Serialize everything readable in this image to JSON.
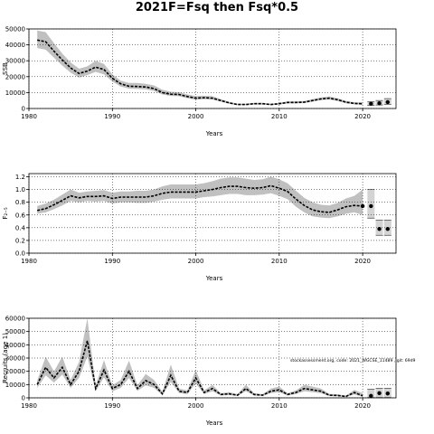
{
  "title": "2021F=Fsq then Fsq*0.5",
  "watermark": "stockassessment.org, code: 2021_WGCSE_11489 , git: 69d9",
  "colors": {
    "band": "#c0c0c0",
    "line": "#000000",
    "projection_band": "#d3d3d3",
    "grid": "#000000"
  },
  "chart_data": [
    {
      "type": "line",
      "title": "",
      "xlabel": "Years",
      "ylabel": "SSB",
      "xlim": [
        1980,
        2024
      ],
      "ylim": [
        0,
        50000
      ],
      "xticks": [
        1980,
        1990,
        2000,
        2010,
        2020
      ],
      "yticks": [
        0,
        10000,
        20000,
        30000,
        40000,
        50000
      ],
      "grid": true,
      "x": [
        1981,
        1982,
        1983,
        1984,
        1985,
        1986,
        1987,
        1988,
        1989,
        1990,
        1991,
        1992,
        1993,
        1994,
        1995,
        1996,
        1997,
        1998,
        1999,
        2000,
        2001,
        2002,
        2003,
        2004,
        2005,
        2006,
        2007,
        2008,
        2009,
        2010,
        2011,
        2012,
        2013,
        2014,
        2015,
        2016,
        2017,
        2018,
        2019,
        2020
      ],
      "estimate": [
        43000,
        42000,
        36000,
        30500,
        25500,
        22000,
        23500,
        26000,
        24500,
        19000,
        15500,
        14000,
        13800,
        13500,
        12500,
        10000,
        9000,
        8800,
        7500,
        6500,
        6800,
        6500,
        5000,
        3500,
        2500,
        2500,
        3000,
        3000,
        2500,
        3000,
        3800,
        3800,
        4000,
        5000,
        6000,
        6500,
        5500,
        4000,
        3200,
        3000
      ],
      "lower": [
        38000,
        37000,
        32000,
        27000,
        22500,
        19500,
        21000,
        23000,
        21500,
        17000,
        13800,
        12500,
        12300,
        12000,
        11000,
        8800,
        7900,
        7700,
        6500,
        5500,
        5800,
        5600,
        4300,
        3000,
        2100,
        2100,
        2500,
        2500,
        2100,
        2500,
        3200,
        3200,
        3400,
        4300,
        5200,
        5600,
        4700,
        3300,
        2600,
        2300
      ],
      "upper": [
        49000,
        48000,
        41000,
        34500,
        29000,
        25000,
        26500,
        30000,
        28000,
        21500,
        17500,
        16000,
        16000,
        15500,
        14500,
        11800,
        10500,
        10200,
        8800,
        7800,
        8000,
        7700,
        5900,
        4200,
        3000,
        3000,
        3600,
        3600,
        3000,
        3600,
        4500,
        4500,
        4700,
        5900,
        7000,
        7600,
        6500,
        4800,
        3900,
        3800
      ],
      "projection": {
        "x": [
          2021,
          2022,
          2023
        ],
        "values": [
          3000,
          3300,
          4000
        ],
        "lower": [
          2000,
          2200,
          2600
        ],
        "upper": [
          4200,
          5000,
          6200
        ]
      }
    },
    {
      "type": "line",
      "title": "",
      "xlabel": "Years",
      "ylabel": "F₂₋₅",
      "xlim": [
        1980,
        2024
      ],
      "ylim": [
        0,
        1.25
      ],
      "xticks": [
        1980,
        1990,
        2000,
        2010,
        2020
      ],
      "yticks": [
        0.0,
        0.2,
        0.4,
        0.6,
        0.8,
        1.0,
        1.2
      ],
      "grid": true,
      "x": [
        1981,
        1982,
        1983,
        1984,
        1985,
        1986,
        1987,
        1988,
        1989,
        1990,
        1991,
        1992,
        1993,
        1994,
        1995,
        1996,
        1997,
        1998,
        1999,
        2000,
        2001,
        2002,
        2003,
        2004,
        2005,
        2006,
        2007,
        2008,
        2009,
        2010,
        2011,
        2012,
        2013,
        2014,
        2015,
        2016,
        2017,
        2018,
        2019,
        2020
      ],
      "estimate": [
        0.67,
        0.7,
        0.76,
        0.83,
        0.9,
        0.87,
        0.89,
        0.89,
        0.9,
        0.86,
        0.88,
        0.88,
        0.88,
        0.88,
        0.9,
        0.94,
        0.96,
        0.96,
        0.96,
        0.96,
        0.98,
        1.0,
        1.03,
        1.05,
        1.05,
        1.03,
        1.02,
        1.03,
        1.06,
        1.02,
        0.97,
        0.85,
        0.75,
        0.68,
        0.65,
        0.64,
        0.68,
        0.73,
        0.75,
        0.74
      ],
      "lower": [
        0.62,
        0.64,
        0.69,
        0.75,
        0.82,
        0.8,
        0.82,
        0.81,
        0.82,
        0.78,
        0.8,
        0.8,
        0.79,
        0.79,
        0.81,
        0.84,
        0.86,
        0.86,
        0.86,
        0.86,
        0.88,
        0.89,
        0.91,
        0.93,
        0.93,
        0.91,
        0.91,
        0.92,
        0.94,
        0.9,
        0.85,
        0.73,
        0.64,
        0.58,
        0.56,
        0.55,
        0.58,
        0.62,
        0.64,
        0.6
      ],
      "upper": [
        0.74,
        0.78,
        0.84,
        0.92,
        1.0,
        0.95,
        0.97,
        0.98,
        0.99,
        0.95,
        0.97,
        0.97,
        0.98,
        0.98,
        1.0,
        1.05,
        1.08,
        1.08,
        1.08,
        1.08,
        1.1,
        1.13,
        1.17,
        1.19,
        1.19,
        1.17,
        1.15,
        1.16,
        1.2,
        1.16,
        1.1,
        0.98,
        0.87,
        0.8,
        0.76,
        0.75,
        0.79,
        0.86,
        0.9,
        1.0
      ],
      "projection": {
        "x": [
          2021,
          2022,
          2023
        ],
        "values": [
          0.74,
          0.38,
          0.38
        ],
        "lower": [
          0.55,
          0.28,
          0.28
        ],
        "upper": [
          1.0,
          0.52,
          0.52
        ]
      }
    },
    {
      "type": "line",
      "title": "",
      "xlabel": "Years",
      "ylabel": "Recruits (age 1)",
      "xlim": [
        1980,
        2024
      ],
      "ylim": [
        0,
        60000
      ],
      "xticks": [
        1980,
        1990,
        2000,
        2010,
        2020
      ],
      "yticks": [
        0,
        10000,
        20000,
        30000,
        40000,
        50000,
        60000
      ],
      "grid": true,
      "x": [
        1981,
        1982,
        1983,
        1984,
        1985,
        1986,
        1987,
        1988,
        1989,
        1990,
        1991,
        1992,
        1993,
        1994,
        1995,
        1996,
        1997,
        1998,
        1999,
        2000,
        2001,
        2002,
        2003,
        2004,
        2005,
        2006,
        2007,
        2008,
        2009,
        2010,
        2011,
        2012,
        2013,
        2014,
        2015,
        2016,
        2017,
        2018,
        2019,
        2020
      ],
      "estimate": [
        10000,
        23000,
        15000,
        23000,
        10000,
        20000,
        43000,
        7000,
        21000,
        7000,
        10000,
        20000,
        7000,
        13000,
        10000,
        3000,
        17000,
        5000,
        4000,
        15000,
        4000,
        7000,
        2500,
        3000,
        2000,
        7000,
        2500,
        2000,
        5000,
        6000,
        2500,
        4000,
        7000,
        6000,
        5000,
        2000,
        1800,
        1000,
        4000,
        1500
      ],
      "lower": [
        7500,
        17000,
        11500,
        17500,
        7500,
        15000,
        31000,
        5000,
        15500,
        5000,
        7500,
        15000,
        5200,
        9500,
        7500,
        2000,
        12000,
        3600,
        2800,
        11000,
        2800,
        5000,
        1700,
        2100,
        1400,
        5000,
        1700,
        1400,
        3600,
        4300,
        1700,
        2800,
        5000,
        4200,
        3500,
        1300,
        1200,
        600,
        2600,
        700
      ],
      "upper": [
        13000,
        31000,
        20000,
        31000,
        13500,
        27000,
        60000,
        9500,
        28500,
        9500,
        13500,
        28000,
        9500,
        18000,
        13500,
        4500,
        25000,
        7000,
        5600,
        21000,
        5600,
        9800,
        3500,
        4200,
        2800,
        9800,
        3500,
        2800,
        7000,
        8500,
        3500,
        5600,
        9800,
        8500,
        7000,
        3000,
        2700,
        1600,
        6000,
        3500
      ],
      "projection": {
        "x": [
          2021,
          2022,
          2023
        ],
        "values": [
          1500,
          3500,
          3300
        ],
        "lower": [
          200,
          200,
          200
        ],
        "upper": [
          6500,
          7200,
          7200
        ]
      }
    }
  ]
}
